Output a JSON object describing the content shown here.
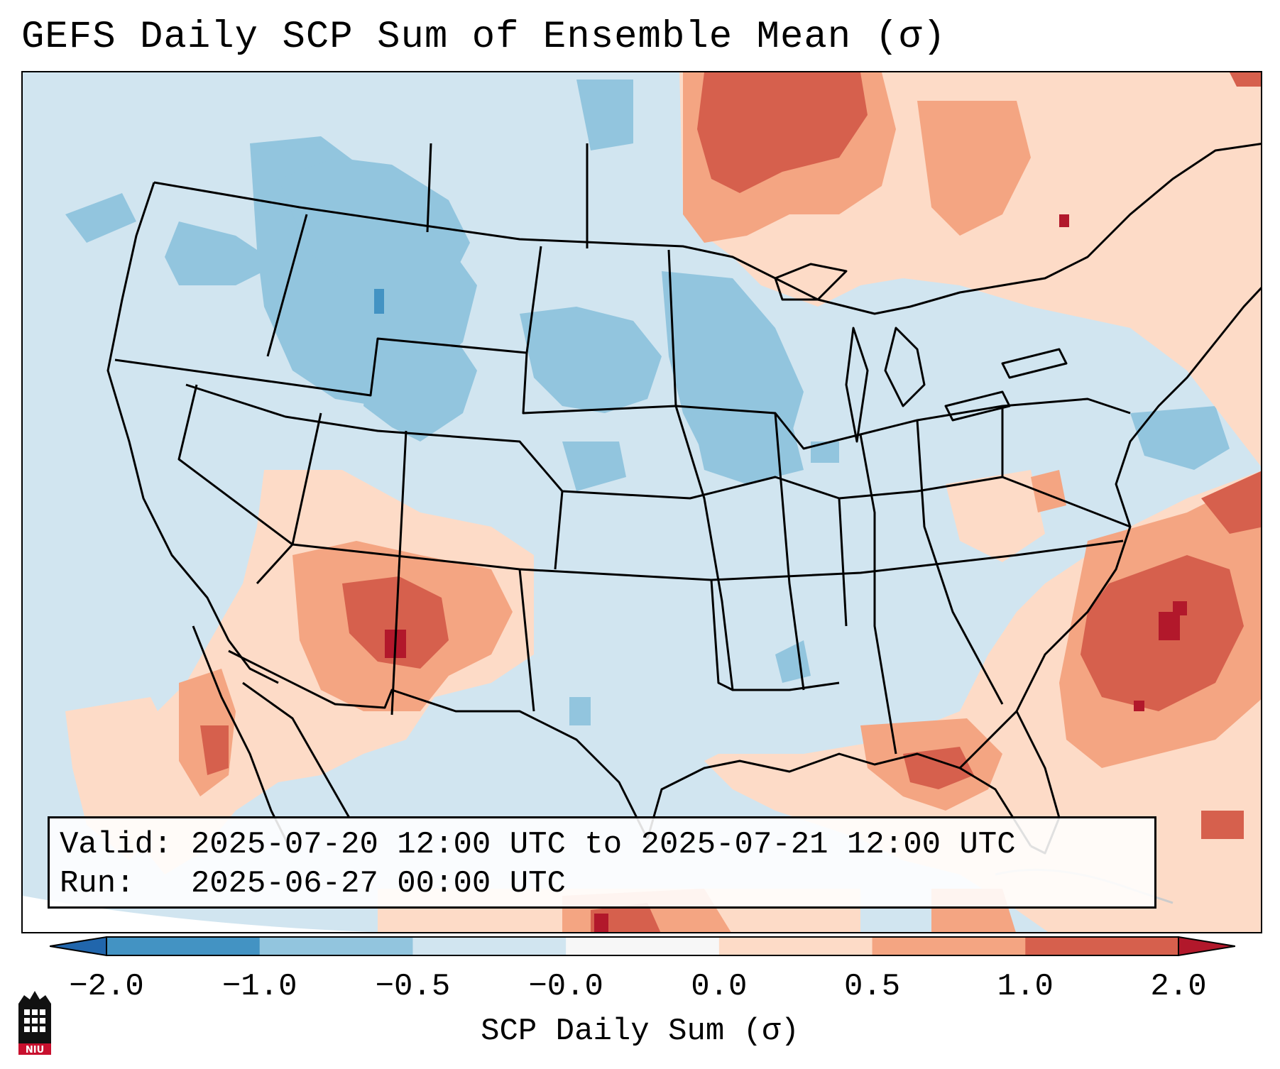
{
  "header": {
    "title": "GEFS Daily SCP Sum of Ensemble Mean (σ)"
  },
  "info": {
    "valid_line": "Valid: 2025-07-20 12:00 UTC to 2025-07-21 12:00 UTC",
    "run_line": "Run:   2025-06-27 00:00 UTC"
  },
  "colorbar": {
    "label": "SCP Daily Sum (σ)",
    "ticks": [
      "−2.0",
      "−1.0",
      "−0.5",
      "−0.0",
      "0.0",
      "0.5",
      "1.0",
      "2.0"
    ],
    "colors": [
      "#4393c3",
      "#92c5de",
      "#d1e5f0",
      "#f7f7f7",
      "#fddbc7",
      "#f4a582",
      "#d6604d"
    ],
    "under_color": "#2166ac",
    "over_color": "#b2182b"
  },
  "logo": {
    "text": "NIU"
  }
}
